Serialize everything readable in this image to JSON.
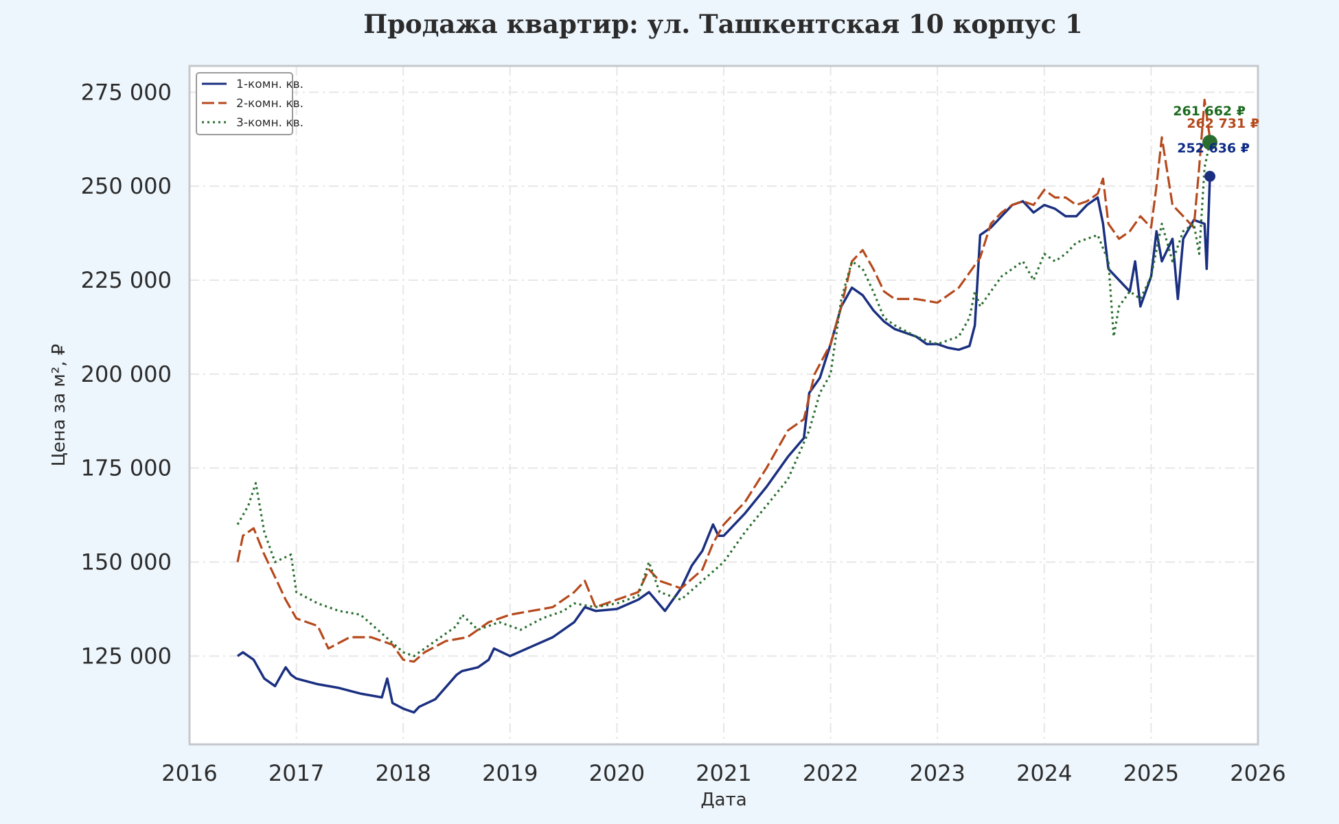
{
  "chart_data": {
    "type": "line",
    "title": "Продажа квартир: ул. Ташкентская 10 корпус 1",
    "xlabel": "Дата",
    "ylabel": "Цена за м², ₽",
    "xlim": [
      2016.0,
      2026.0
    ],
    "ylim": [
      101500,
      282000
    ],
    "x_ticks": [
      2016,
      2017,
      2018,
      2019,
      2020,
      2021,
      2022,
      2023,
      2024,
      2025,
      2026
    ],
    "x_tick_labels": [
      "2016",
      "2017",
      "2018",
      "2019",
      "2020",
      "2021",
      "2022",
      "2023",
      "2024",
      "2025",
      "2026"
    ],
    "y_ticks": [
      125000,
      150000,
      175000,
      200000,
      225000,
      250000,
      275000
    ],
    "y_tick_labels": [
      "125 000",
      "150 000",
      "175 000",
      "200 000",
      "225 000",
      "250 000",
      "275 000"
    ],
    "grid": true,
    "legend_position": "top-left",
    "series": [
      {
        "name": "1-комн. кв.",
        "color": "#1a2f80",
        "style": "solid",
        "x": [
          2016.45,
          2016.5,
          2016.6,
          2016.7,
          2016.8,
          2016.9,
          2016.95,
          2017.0,
          2017.2,
          2017.4,
          2017.6,
          2017.8,
          2017.85,
          2017.9,
          2018.0,
          2018.1,
          2018.15,
          2018.3,
          2018.5,
          2018.55,
          2018.7,
          2018.8,
          2018.85,
          2019.0,
          2019.2,
          2019.4,
          2019.6,
          2019.7,
          2019.8,
          2020.0,
          2020.2,
          2020.3,
          2020.45,
          2020.6,
          2020.7,
          2020.8,
          2020.9,
          2020.95,
          2021.0,
          2021.2,
          2021.4,
          2021.6,
          2021.75,
          2021.8,
          2021.9,
          2022.0,
          2022.1,
          2022.2,
          2022.3,
          2022.4,
          2022.5,
          2022.6,
          2022.7,
          2022.8,
          2022.9,
          2023.0,
          2023.1,
          2023.2,
          2023.3,
          2023.35,
          2023.4,
          2023.5,
          2023.6,
          2023.7,
          2023.8,
          2023.9,
          2024.0,
          2024.1,
          2024.2,
          2024.3,
          2024.4,
          2024.5,
          2024.55,
          2024.6,
          2024.7,
          2024.8,
          2024.85,
          2024.9,
          2025.0,
          2025.05,
          2025.1,
          2025.2,
          2025.25,
          2025.3,
          2025.4,
          2025.5,
          2025.52,
          2025.55
        ],
        "y": [
          125000,
          126000,
          124000,
          119000,
          117000,
          122000,
          120000,
          119000,
          117500,
          116500,
          115000,
          114000,
          119000,
          112500,
          111000,
          110000,
          111500,
          113500,
          120000,
          121000,
          122000,
          124000,
          127000,
          125000,
          127500,
          130000,
          134000,
          138000,
          137000,
          137500,
          140000,
          142000,
          137000,
          143000,
          149000,
          153000,
          160000,
          157000,
          157000,
          163000,
          170000,
          178000,
          183000,
          195000,
          199000,
          208000,
          218000,
          223000,
          221000,
          217000,
          214000,
          212000,
          211000,
          210000,
          208000,
          208000,
          207000,
          206500,
          207500,
          213000,
          237000,
          239000,
          242000,
          245000,
          246000,
          243000,
          245000,
          244000,
          242000,
          242000,
          245000,
          247000,
          240000,
          228000,
          225000,
          222000,
          230000,
          218000,
          226000,
          238000,
          230000,
          236000,
          220000,
          236000,
          241000,
          240000,
          228000,
          252636
        ]
      },
      {
        "name": "2-комн. кв.",
        "color": "#b5491c",
        "style": "dashed",
        "x": [
          2016.45,
          2016.5,
          2016.6,
          2016.7,
          2016.75,
          2016.8,
          2016.9,
          2017.0,
          2017.2,
          2017.3,
          2017.5,
          2017.7,
          2017.9,
          2018.0,
          2018.1,
          2018.2,
          2018.4,
          2018.6,
          2018.8,
          2019.0,
          2019.2,
          2019.4,
          2019.6,
          2019.7,
          2019.8,
          2020.0,
          2020.2,
          2020.3,
          2020.4,
          2020.6,
          2020.8,
          2020.9,
          2021.0,
          2021.2,
          2021.4,
          2021.6,
          2021.75,
          2021.85,
          2022.0,
          2022.1,
          2022.2,
          2022.3,
          2022.4,
          2022.5,
          2022.6,
          2022.8,
          2023.0,
          2023.2,
          2023.3,
          2023.4,
          2023.5,
          2023.6,
          2023.7,
          2023.8,
          2023.9,
          2024.0,
          2024.1,
          2024.2,
          2024.3,
          2024.4,
          2024.5,
          2024.55,
          2024.6,
          2024.7,
          2024.8,
          2024.9,
          2025.0,
          2025.05,
          2025.1,
          2025.2,
          2025.3,
          2025.4,
          2025.45,
          2025.5,
          2025.55
        ],
        "y": [
          150000,
          157000,
          159000,
          152000,
          149000,
          146000,
          140000,
          135000,
          133000,
          127000,
          130000,
          130000,
          128000,
          124000,
          123500,
          126000,
          129000,
          130000,
          134000,
          136000,
          137000,
          138000,
          142000,
          145000,
          138000,
          140000,
          142000,
          148000,
          145000,
          143000,
          148000,
          155000,
          160000,
          166000,
          175000,
          185000,
          188000,
          200000,
          208000,
          218000,
          230000,
          233000,
          228000,
          222000,
          220000,
          220000,
          219000,
          223000,
          227000,
          231000,
          240000,
          243000,
          245000,
          246000,
          245000,
          249000,
          247000,
          247000,
          245000,
          246000,
          248000,
          252000,
          240000,
          236000,
          238000,
          242000,
          239000,
          250000,
          263000,
          245000,
          242000,
          239000,
          255000,
          273000,
          262731
        ]
      },
      {
        "name": "3-комн. кв.",
        "color": "#2a6e2f",
        "style": "dotted",
        "x": [
          2016.45,
          2016.55,
          2016.62,
          2016.7,
          2016.8,
          2016.95,
          2017.0,
          2017.2,
          2017.4,
          2017.6,
          2017.8,
          2018.0,
          2018.1,
          2018.3,
          2018.5,
          2018.55,
          2018.7,
          2018.9,
          2019.1,
          2019.3,
          2019.5,
          2019.6,
          2019.8,
          2020.0,
          2020.2,
          2020.3,
          2020.4,
          2020.6,
          2020.8,
          2021.0,
          2021.2,
          2021.4,
          2021.6,
          2021.8,
          2021.9,
          2022.0,
          2022.1,
          2022.2,
          2022.3,
          2022.4,
          2022.5,
          2022.6,
          2022.8,
          2023.0,
          2023.2,
          2023.3,
          2023.35,
          2023.4,
          2023.5,
          2023.6,
          2023.7,
          2023.8,
          2023.9,
          2024.0,
          2024.1,
          2024.2,
          2024.3,
          2024.4,
          2024.5,
          2024.6,
          2024.65,
          2024.7,
          2024.8,
          2024.9,
          2025.0,
          2025.1,
          2025.2,
          2025.3,
          2025.4,
          2025.45,
          2025.5,
          2025.55
        ],
        "y": [
          160000,
          165000,
          171000,
          158000,
          150000,
          152000,
          142000,
          139000,
          137000,
          136000,
          131000,
          126000,
          125000,
          129000,
          133000,
          136000,
          132000,
          134000,
          132000,
          135000,
          137000,
          139000,
          138000,
          139000,
          141000,
          150000,
          142000,
          140000,
          145000,
          150000,
          158000,
          165000,
          172000,
          185000,
          195000,
          200000,
          220000,
          230000,
          228000,
          222000,
          215000,
          213000,
          210000,
          208000,
          210000,
          215000,
          222000,
          218000,
          222000,
          226000,
          228000,
          230000,
          225000,
          232000,
          230000,
          232000,
          235000,
          236000,
          237000,
          230000,
          210000,
          218000,
          222000,
          220000,
          226000,
          240000,
          230000,
          238000,
          240000,
          232000,
          255000,
          261662
        ]
      }
    ],
    "end_labels": [
      {
        "series": "3-комн. кв.",
        "text": "261 662 ₽",
        "color": "#1e6b22"
      },
      {
        "series": "2-комн. кв.",
        "text": "262 731 ₽",
        "color": "#b5491c"
      },
      {
        "series": "1-комн. кв.",
        "text": "252 636 ₽",
        "color": "#0d2a86"
      }
    ]
  }
}
